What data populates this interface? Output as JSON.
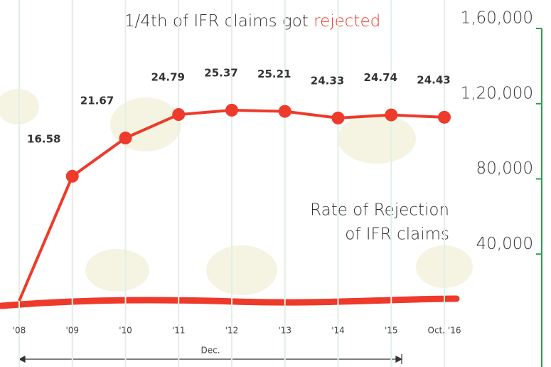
{
  "chart_data": {
    "type": "line",
    "title": "1/4th of IFR claims got ",
    "title_highlight": "rejected",
    "annotation": [
      "Rate of Rejection",
      "of IFR claims"
    ],
    "range_label": "Dec.",
    "categories": [
      "'08",
      "'09",
      "'10",
      "'11",
      "'12",
      "'13",
      "'14",
      "'15",
      "Oct. '16"
    ],
    "series": [
      {
        "name": "Rate of Rejection of IFR claims",
        "color": "#ee3a2b",
        "values": [
          0,
          16.58,
          21.67,
          24.79,
          25.37,
          25.21,
          24.33,
          24.74,
          24.43
        ]
      }
    ],
    "ylim": [
      0,
      30
    ],
    "y2lim": [
      0,
      160000
    ],
    "y2ticks": [
      {
        "value": 40000,
        "label": "40,000"
      },
      {
        "value": 80000,
        "label": "80,000"
      },
      {
        "value": 120000,
        "label": "1,20,000"
      },
      {
        "value": 160000,
        "label": "1,60,000"
      }
    ],
    "axis_color": "#2e9e4a"
  }
}
